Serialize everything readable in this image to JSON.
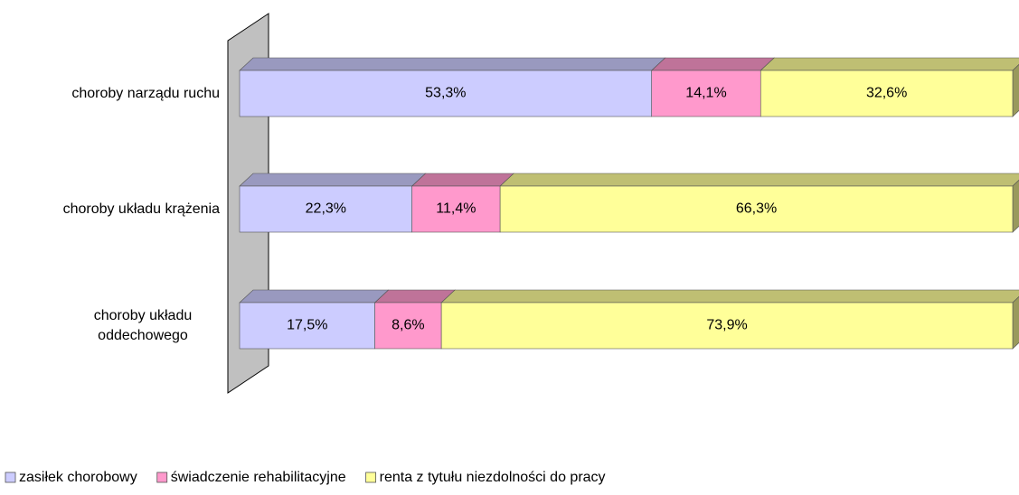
{
  "chart_data": {
    "type": "stacked-bar-horizontal",
    "categories": [
      "choroby narządu ruchu",
      "choroby układu krążenia",
      "choroby układu oddechowego"
    ],
    "series": [
      {
        "name": "zasiłek chorobowy",
        "color": "#ccccff",
        "values": [
          53.3,
          22.3,
          17.5
        ],
        "value_labels": [
          "53,3%",
          "22,3%",
          "17,5%"
        ]
      },
      {
        "name": "świadczenie rehabilitacyjne",
        "color": "#ff99cc",
        "values": [
          14.1,
          11.4,
          8.6
        ],
        "value_labels": [
          "14,1%",
          "11,4%",
          "8,6%"
        ]
      },
      {
        "name": "renta z tytułu niezdolności do pracy",
        "color": "#ffff99",
        "values": [
          32.6,
          66.3,
          73.9
        ],
        "value_labels": [
          "32,6%",
          "66,3%",
          "73,9%"
        ]
      }
    ],
    "legend": "bottom"
  }
}
